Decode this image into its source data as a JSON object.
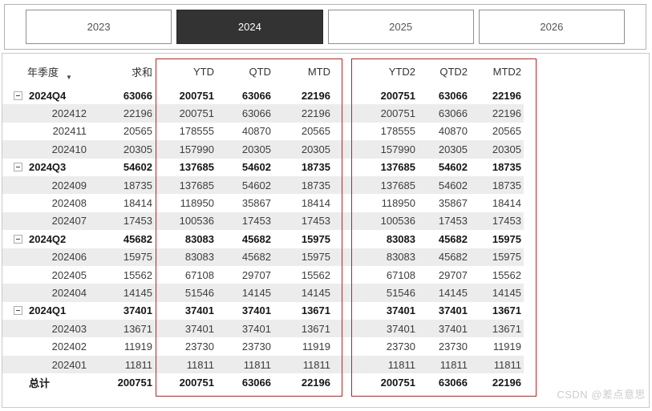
{
  "tabs": {
    "items": [
      {
        "label": "2023",
        "selected": false
      },
      {
        "label": "2024",
        "selected": true
      },
      {
        "label": "2025",
        "selected": false
      },
      {
        "label": "2026",
        "selected": false
      }
    ]
  },
  "table": {
    "columns": [
      "年季度",
      "求和",
      "YTD",
      "QTD",
      "MTD",
      "YTD2",
      "QTD2",
      "MTD2"
    ],
    "sort_column": "年季度",
    "rows": [
      {
        "label": "2024Q4",
        "type": "quarter",
        "values": [
          "63066",
          "200751",
          "63066",
          "22196",
          "200751",
          "63066",
          "22196"
        ]
      },
      {
        "label": "202412",
        "type": "month",
        "values": [
          "22196",
          "200751",
          "63066",
          "22196",
          "200751",
          "63066",
          "22196"
        ]
      },
      {
        "label": "202411",
        "type": "month",
        "values": [
          "20565",
          "178555",
          "40870",
          "20565",
          "178555",
          "40870",
          "20565"
        ]
      },
      {
        "label": "202410",
        "type": "month",
        "values": [
          "20305",
          "157990",
          "20305",
          "20305",
          "157990",
          "20305",
          "20305"
        ]
      },
      {
        "label": "2024Q3",
        "type": "quarter",
        "values": [
          "54602",
          "137685",
          "54602",
          "18735",
          "137685",
          "54602",
          "18735"
        ]
      },
      {
        "label": "202409",
        "type": "month",
        "values": [
          "18735",
          "137685",
          "54602",
          "18735",
          "137685",
          "54602",
          "18735"
        ]
      },
      {
        "label": "202408",
        "type": "month",
        "values": [
          "18414",
          "118950",
          "35867",
          "18414",
          "118950",
          "35867",
          "18414"
        ]
      },
      {
        "label": "202407",
        "type": "month",
        "values": [
          "17453",
          "100536",
          "17453",
          "17453",
          "100536",
          "17453",
          "17453"
        ]
      },
      {
        "label": "2024Q2",
        "type": "quarter",
        "values": [
          "45682",
          "83083",
          "45682",
          "15975",
          "83083",
          "45682",
          "15975"
        ]
      },
      {
        "label": "202406",
        "type": "month",
        "values": [
          "15975",
          "83083",
          "45682",
          "15975",
          "83083",
          "45682",
          "15975"
        ]
      },
      {
        "label": "202405",
        "type": "month",
        "values": [
          "15562",
          "67108",
          "29707",
          "15562",
          "67108",
          "29707",
          "15562"
        ]
      },
      {
        "label": "202404",
        "type": "month",
        "values": [
          "14145",
          "51546",
          "14145",
          "14145",
          "51546",
          "14145",
          "14145"
        ]
      },
      {
        "label": "2024Q1",
        "type": "quarter",
        "values": [
          "37401",
          "37401",
          "37401",
          "13671",
          "37401",
          "37401",
          "13671"
        ]
      },
      {
        "label": "202403",
        "type": "month",
        "values": [
          "13671",
          "37401",
          "37401",
          "13671",
          "37401",
          "37401",
          "13671"
        ]
      },
      {
        "label": "202402",
        "type": "month",
        "values": [
          "11919",
          "23730",
          "23730",
          "11919",
          "23730",
          "23730",
          "11919"
        ]
      },
      {
        "label": "202401",
        "type": "month",
        "values": [
          "11811",
          "11811",
          "11811",
          "11811",
          "11811",
          "11811",
          "11811"
        ]
      },
      {
        "label": "总计",
        "type": "total",
        "values": [
          "200751",
          "200751",
          "63066",
          "22196",
          "200751",
          "63066",
          "22196"
        ]
      }
    ]
  },
  "watermark": "CSDN @差点意思",
  "colors": {
    "accent_red": "#c02020",
    "selected_tab_bg": "#333333",
    "stripe": "#ececec"
  }
}
